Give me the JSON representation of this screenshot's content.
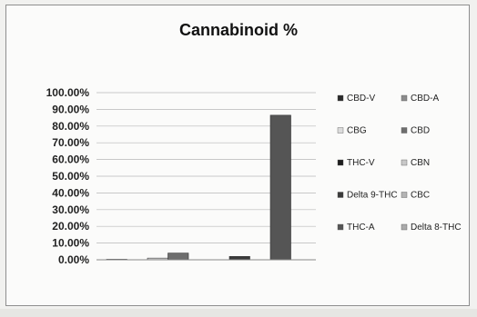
{
  "chart_data": {
    "type": "bar",
    "title": "Cannabinoid %",
    "xlabel": "",
    "ylabel": "",
    "ylim": [
      0,
      100
    ],
    "yticks": [
      "0.00%",
      "10.00%",
      "20.00%",
      "30.00%",
      "40.00%",
      "50.00%",
      "60.00%",
      "70.00%",
      "80.00%",
      "90.00%",
      "100.00%"
    ],
    "grid": true,
    "legend_position": "right",
    "series": [
      {
        "name": "CBD-V",
        "value": 0.3,
        "color": "#2a2a2a"
      },
      {
        "name": "CBD-A",
        "value": 0.0,
        "color": "#8c8c8c"
      },
      {
        "name": "CBG",
        "value": 1.0,
        "color": "#dcdcdc"
      },
      {
        "name": "CBD",
        "value": 4.0,
        "color": "#6e6e6e"
      },
      {
        "name": "THC-V",
        "value": 0.2,
        "color": "#1e1e1e"
      },
      {
        "name": "CBN",
        "value": 0.0,
        "color": "#c8c8c8"
      },
      {
        "name": "Delta 9-THC",
        "value": 2.0,
        "color": "#3a3a3a"
      },
      {
        "name": "CBC",
        "value": 0.0,
        "color": "#b4b4b4"
      },
      {
        "name": "THC-A",
        "value": 86.5,
        "color": "#555555"
      },
      {
        "name": "Delta 8-THC",
        "value": 0.0,
        "color": "#aaaaaa"
      }
    ]
  }
}
